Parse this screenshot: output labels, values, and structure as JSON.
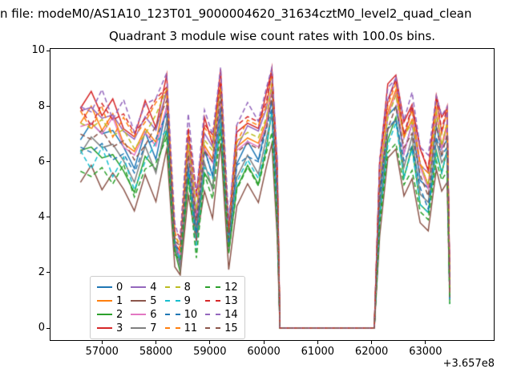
{
  "figure": {
    "suptitle": "n file: modeM0/AS1A10_123T01_9000004620_31634cztM0_level2_quad_clean",
    "title": "Quadrant 3 module wise count rates with 100.0s bins.",
    "background": "#ffffff",
    "text_color": "#000000",
    "axes_edge_color": "#000000",
    "legend_edge_color": "#cccccc"
  },
  "chart_data": {
    "type": "line",
    "title": "Quadrant 3 module wise count rates with 100.0s bins.",
    "xlabel": "",
    "ylabel": "",
    "x_offset_label": "+3.657e8",
    "xlim": [
      56030,
      64280
    ],
    "ylim": [
      -0.46,
      10.1
    ],
    "xticks": [
      57000,
      58000,
      59000,
      60000,
      61000,
      62000,
      63000
    ],
    "yticks": [
      0,
      2,
      4,
      6,
      8,
      10
    ],
    "grid": false,
    "legend_position": "lower left",
    "legend_columns": 4,
    "x": [
      56600,
      56800,
      57000,
      57200,
      57400,
      57600,
      57800,
      58000,
      58200,
      58350,
      58450,
      58600,
      58750,
      58900,
      59050,
      59200,
      59350,
      59500,
      59700,
      59900,
      60050,
      60150,
      60250,
      60300,
      61000,
      62050,
      62150,
      62300,
      62450,
      62600,
      62750,
      62900,
      63050,
      63200,
      63300,
      63400,
      63450
    ],
    "templates": {
      "T1": [
        7.0,
        7.4,
        6.8,
        7.2,
        6.4,
        5.9,
        7.0,
        6.3,
        8.0,
        2.9,
        2.4,
        6.2,
        3.7,
        6.4,
        5.7,
        8.2,
        2.8,
        6.0,
        6.6,
        6.2,
        7.3,
        8.4,
        4.8,
        0,
        0,
        0,
        5.0,
        7.6,
        8.2,
        6.3,
        7.2,
        5.4,
        4.9,
        7.4,
        6.4,
        7.0,
        1.5
      ],
      "T2": [
        7.6,
        7.2,
        7.8,
        7.0,
        7.5,
        6.6,
        7.4,
        7.9,
        8.6,
        3.4,
        3.0,
        7.0,
        4.4,
        7.2,
        6.6,
        8.8,
        3.5,
        6.8,
        7.4,
        7.0,
        8.0,
        9.0,
        5.5,
        0,
        0,
        0,
        5.6,
        8.0,
        8.6,
        6.9,
        7.7,
        6.0,
        5.5,
        7.9,
        7.0,
        7.6,
        1.3
      ]
    },
    "series_values_rule": "values = template + offset (offset scaled x0.3 where template value < 4); template value 0 stays 0",
    "series": [
      {
        "name": "0",
        "color": "#1f77b4",
        "linestyle": "solid",
        "template": "T1",
        "offset": 0.0
      },
      {
        "name": "1",
        "color": "#ff7f0e",
        "linestyle": "solid",
        "template": "T1",
        "offset": 0.4
      },
      {
        "name": "2",
        "color": "#2ca02c",
        "linestyle": "solid",
        "template": "T1",
        "offset": -0.8
      },
      {
        "name": "3",
        "color": "#d62728",
        "linestyle": "solid",
        "template": "T1",
        "offset": 1.0
      },
      {
        "name": "4",
        "color": "#9467bd",
        "linestyle": "solid",
        "template": "T1",
        "offset": 0.7
      },
      {
        "name": "5",
        "color": "#8c564b",
        "linestyle": "solid",
        "template": "T1",
        "offset": -1.6
      },
      {
        "name": "6",
        "color": "#e377c2",
        "linestyle": "solid",
        "template": "T1",
        "offset": 0.2
      },
      {
        "name": "7",
        "color": "#7f7f7f",
        "linestyle": "solid",
        "template": "T1",
        "offset": -0.5
      },
      {
        "name": "8",
        "color": "#bcbd22",
        "linestyle": "dashed",
        "template": "T2",
        "offset": -0.2
      },
      {
        "name": "9",
        "color": "#17becf",
        "linestyle": "dashed",
        "template": "T2",
        "offset": -1.4
      },
      {
        "name": "10",
        "color": "#1f77b4",
        "linestyle": "dashed",
        "template": "T2",
        "offset": -1.0
      },
      {
        "name": "11",
        "color": "#ff7f0e",
        "linestyle": "dashed",
        "template": "T2",
        "offset": 0.1
      },
      {
        "name": "12",
        "color": "#2ca02c",
        "linestyle": "dashed",
        "template": "T2",
        "offset": -1.8
      },
      {
        "name": "13",
        "color": "#d62728",
        "linestyle": "dashed",
        "template": "T2",
        "offset": 0.3
      },
      {
        "name": "14",
        "color": "#9467bd",
        "linestyle": "dashed",
        "template": "T2",
        "offset": 0.6
      },
      {
        "name": "15",
        "color": "#8c564b",
        "linestyle": "dashed",
        "template": "T2",
        "offset": -0.6
      }
    ]
  }
}
